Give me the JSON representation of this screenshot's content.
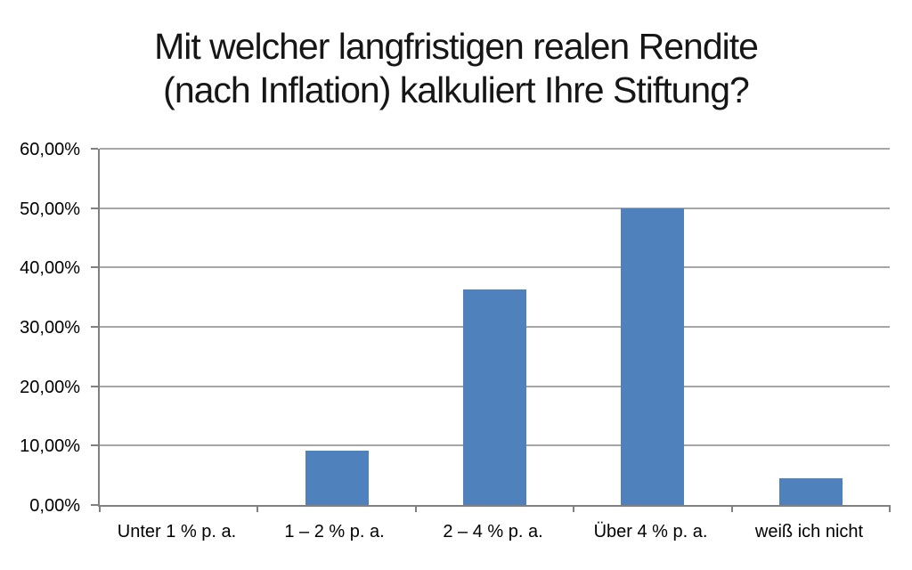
{
  "title": {
    "line1": "Mit welcher langfristigen realen Rendite",
    "line2": "(nach Inflation) kalkuliert Ihre Stiftung?"
  },
  "chart_data": {
    "type": "bar",
    "title": "Mit welcher langfristigen realen Rendite (nach Inflation) kalkuliert Ihre Stiftung?",
    "categories": [
      "Unter 1 % p. a.",
      "1 – 2 % p. a.",
      "2 – 4 % p. a.",
      "Über 4 % p. a.",
      "weiß ich nicht"
    ],
    "values": [
      0,
      9.09,
      36.36,
      50.0,
      4.55
    ],
    "value_unit": "percent",
    "xlabel": "",
    "ylabel": "",
    "ylim": [
      0,
      60
    ],
    "ytick_step": 10,
    "ytick_labels": [
      "0,00%",
      "10,00%",
      "20,00%",
      "30,00%",
      "40,00%",
      "50,00%",
      "60,00%"
    ],
    "grid": true,
    "legend": false,
    "bar_color": "#4f81bd",
    "gridline_color": "#a6a6a6",
    "axis_color": "#808080",
    "text_color": "#000000",
    "background_color": "#ffffff"
  }
}
